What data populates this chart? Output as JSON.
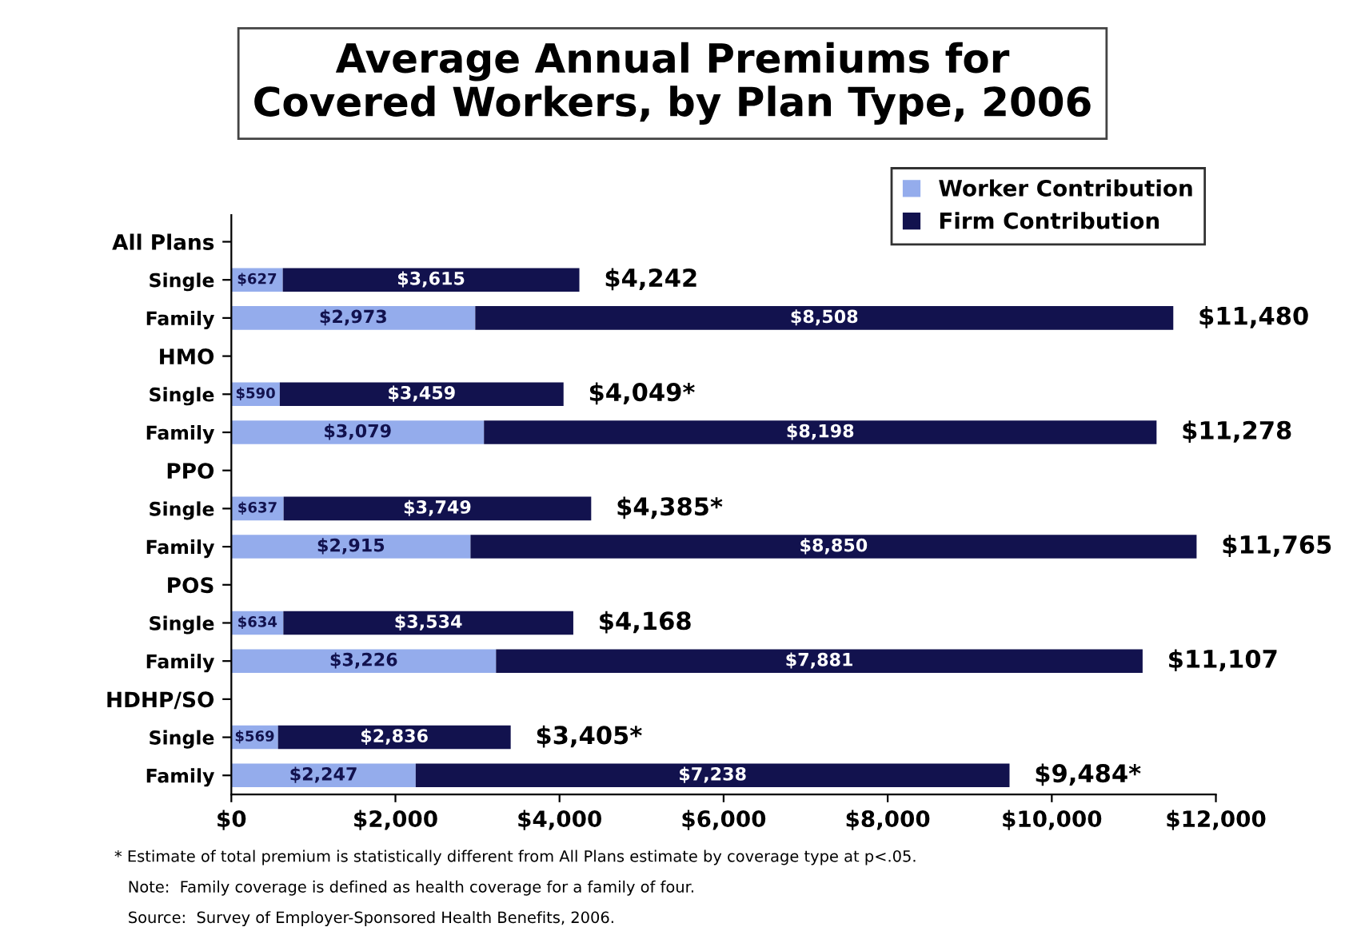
{
  "chart_data": {
    "type": "bar",
    "orientation": "horizontal",
    "stacked": true,
    "title": "Average Annual Premiums for\nCovered Workers, by Plan Type, 2006",
    "categories": [
      "All Plans",
      "Single",
      "Family",
      "HMO",
      "Single",
      "Family",
      "PPO",
      "Single",
      "Family",
      "POS",
      "Single",
      "Family",
      "HDHP/SO",
      "Single",
      "Family"
    ],
    "series": [
      {
        "name": "Worker Contribution",
        "color": "#94acec",
        "values": [
          null,
          627,
          2973,
          null,
          590,
          3079,
          null,
          637,
          2915,
          null,
          634,
          3226,
          null,
          569,
          2247
        ],
        "value_labels": [
          null,
          "$627",
          "$2,973",
          null,
          "$590",
          "$3,079",
          null,
          "$637",
          "$2,915",
          null,
          "$634",
          "$3,226",
          null,
          "$569",
          "$2,247"
        ]
      },
      {
        "name": "Firm Contribution",
        "color": "#12124e",
        "values": [
          null,
          3615,
          8508,
          null,
          3459,
          8198,
          null,
          3749,
          8850,
          null,
          3534,
          7881,
          null,
          2836,
          7238
        ],
        "value_labels": [
          null,
          "$3,615",
          "$8,508",
          null,
          "$3,459",
          "$8,198",
          null,
          "$3,749",
          "$8,850",
          null,
          "$3,534",
          "$7,881",
          null,
          "$2,836",
          "$7,238"
        ]
      }
    ],
    "totals": [
      null,
      "$4,242",
      "$11,480",
      null,
      "$4,049*",
      "$11,278",
      null,
      "$4,385*",
      "$11,765",
      null,
      "$4,168",
      "$11,107",
      null,
      "$3,405*",
      "$9,484*"
    ],
    "xlim": [
      0,
      12000
    ],
    "xticks": [
      {
        "value": 0,
        "label": "$0"
      },
      {
        "value": 2000,
        "label": "$2,000"
      },
      {
        "value": 4000,
        "label": "$4,000"
      },
      {
        "value": 6000,
        "label": "$6,000"
      },
      {
        "value": 8000,
        "label": "$8,000"
      },
      {
        "value": 10000,
        "label": "$10,000"
      },
      {
        "value": 12000,
        "label": "$12,000"
      }
    ],
    "grid": false,
    "legend": "top right",
    "annotations": [
      "* Estimate of total premium is statistically different from All Plans estimate by coverage type at p<.05.",
      "Note:  Family coverage is defined as health coverage for a family of four.",
      "Source:  Survey of Employer-Sponsored Health Benefits, 2006."
    ]
  }
}
